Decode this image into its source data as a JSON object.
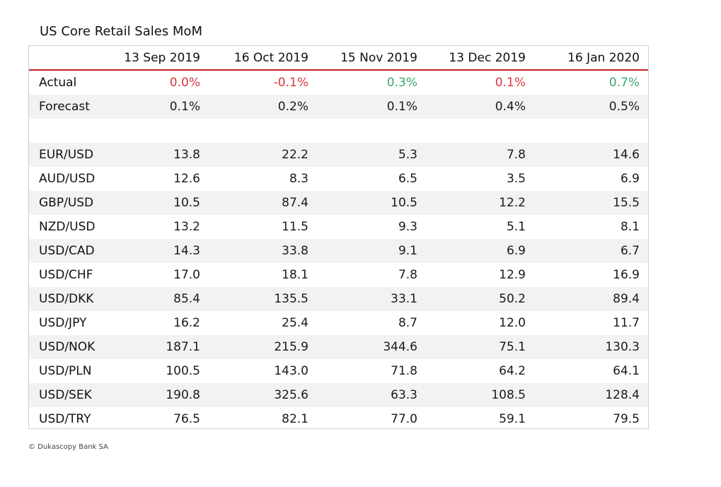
{
  "chart_data": {
    "type": "table",
    "title": "US Core Retail Sales MoM",
    "columns": [
      "13 Sep 2019",
      "16 Oct 2019",
      "15 Nov 2019",
      "13 Dec 2019",
      "16 Jan 2020"
    ],
    "actual": {
      "label": "Actual",
      "values": [
        "0.0%",
        "-0.1%",
        "0.3%",
        "0.1%",
        "0.7%"
      ],
      "status": [
        "neg",
        "neg",
        "pos",
        "neg",
        "pos"
      ]
    },
    "forecast": {
      "label": "Forecast",
      "values": [
        "0.1%",
        "0.2%",
        "0.1%",
        "0.4%",
        "0.5%"
      ]
    },
    "rows": [
      {
        "label": "EUR/USD",
        "values": [
          "13.8",
          "22.2",
          "5.3",
          "7.8",
          "14.6"
        ]
      },
      {
        "label": "AUD/USD",
        "values": [
          "12.6",
          "8.3",
          "6.5",
          "3.5",
          "6.9"
        ]
      },
      {
        "label": "GBP/USD",
        "values": [
          "10.5",
          "87.4",
          "10.5",
          "12.2",
          "15.5"
        ]
      },
      {
        "label": "NZD/USD",
        "values": [
          "13.2",
          "11.5",
          "9.3",
          "5.1",
          "8.1"
        ]
      },
      {
        "label": "USD/CAD",
        "values": [
          "14.3",
          "33.8",
          "9.1",
          "6.9",
          "6.7"
        ]
      },
      {
        "label": "USD/CHF",
        "values": [
          "17.0",
          "18.1",
          "7.8",
          "12.9",
          "16.9"
        ]
      },
      {
        "label": "USD/DKK",
        "values": [
          "85.4",
          "135.5",
          "33.1",
          "50.2",
          "89.4"
        ]
      },
      {
        "label": "USD/JPY",
        "values": [
          "16.2",
          "25.4",
          "8.7",
          "12.0",
          "11.7"
        ]
      },
      {
        "label": "USD/NOK",
        "values": [
          "187.1",
          "215.9",
          "344.6",
          "75.1",
          "130.3"
        ]
      },
      {
        "label": "USD/PLN",
        "values": [
          "100.5",
          "143.0",
          "71.8",
          "64.2",
          "64.1"
        ]
      },
      {
        "label": "USD/SEK",
        "values": [
          "190.8",
          "325.6",
          "63.3",
          "108.5",
          "128.4"
        ]
      },
      {
        "label": "USD/TRY",
        "values": [
          "76.5",
          "82.1",
          "77.0",
          "59.1",
          "79.5"
        ]
      }
    ]
  },
  "colors": {
    "negative": "#d9363e",
    "positive": "#3aa76d",
    "header_rule": "#c0202a"
  },
  "footer": "© Dukascopy Bank SA"
}
